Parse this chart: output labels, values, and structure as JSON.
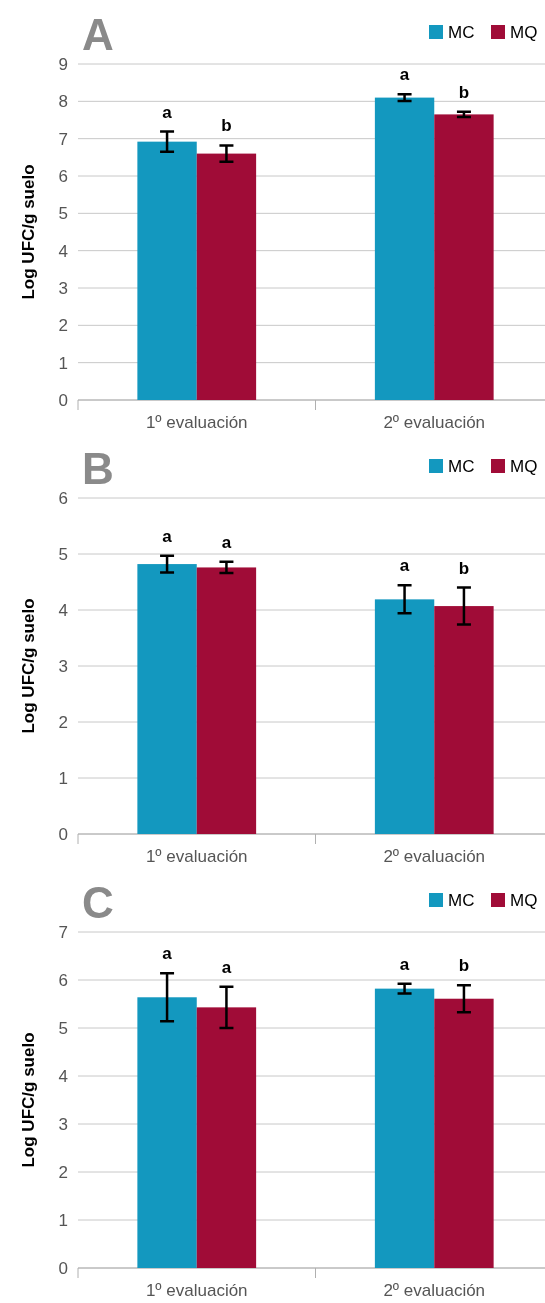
{
  "chart_data": [
    {
      "type": "bar",
      "title": "A",
      "ylabel": "Log UFC/g suelo",
      "categories": [
        "1º evaluación",
        "2º evaluación"
      ],
      "ylim": [
        0,
        9
      ],
      "yticks": [
        0,
        1,
        2,
        3,
        4,
        5,
        6,
        7,
        8,
        9
      ],
      "grid": "y",
      "legend": "top right",
      "series": [
        {
          "name": "MC",
          "color": "#1398bf",
          "values": [
            6.92,
            8.1
          ],
          "errors": [
            0.27,
            0.09
          ],
          "value_labels": [
            "a",
            "a"
          ]
        },
        {
          "name": "MQ",
          "color": "#a00c37",
          "values": [
            6.6,
            7.65
          ],
          "errors": [
            0.22,
            0.07
          ],
          "value_labels": [
            "b",
            "b"
          ]
        }
      ]
    },
    {
      "type": "bar",
      "title": "B",
      "ylabel": "Log UFC/g suelo",
      "categories": [
        "1º evaluación",
        "2º evaluación"
      ],
      "ylim": [
        0,
        6
      ],
      "yticks": [
        0,
        1,
        2,
        3,
        4,
        5,
        6
      ],
      "grid": "y",
      "legend": "top right",
      "series": [
        {
          "name": "MC",
          "color": "#1398bf",
          "values": [
            4.82,
            4.19
          ],
          "errors": [
            0.15,
            0.25
          ],
          "value_labels": [
            "a",
            "a"
          ]
        },
        {
          "name": "MQ",
          "color": "#a00c37",
          "values": [
            4.76,
            4.07
          ],
          "errors": [
            0.1,
            0.33
          ],
          "value_labels": [
            "a",
            "b"
          ]
        }
      ]
    },
    {
      "type": "bar",
      "title": "C",
      "ylabel": "Log UFC/g suelo",
      "categories": [
        "1º evaluación",
        "2º evaluación"
      ],
      "ylim": [
        0,
        7
      ],
      "yticks": [
        0,
        1,
        2,
        3,
        4,
        5,
        6,
        7
      ],
      "grid": "y",
      "legend": "top right",
      "series": [
        {
          "name": "MC",
          "color": "#1398bf",
          "values": [
            5.64,
            5.82
          ],
          "errors": [
            0.5,
            0.1
          ],
          "value_labels": [
            "a",
            "a"
          ]
        },
        {
          "name": "MQ",
          "color": "#a00c37",
          "values": [
            5.43,
            5.61
          ],
          "errors": [
            0.43,
            0.28
          ],
          "value_labels": [
            "a",
            "b"
          ]
        }
      ]
    }
  ]
}
